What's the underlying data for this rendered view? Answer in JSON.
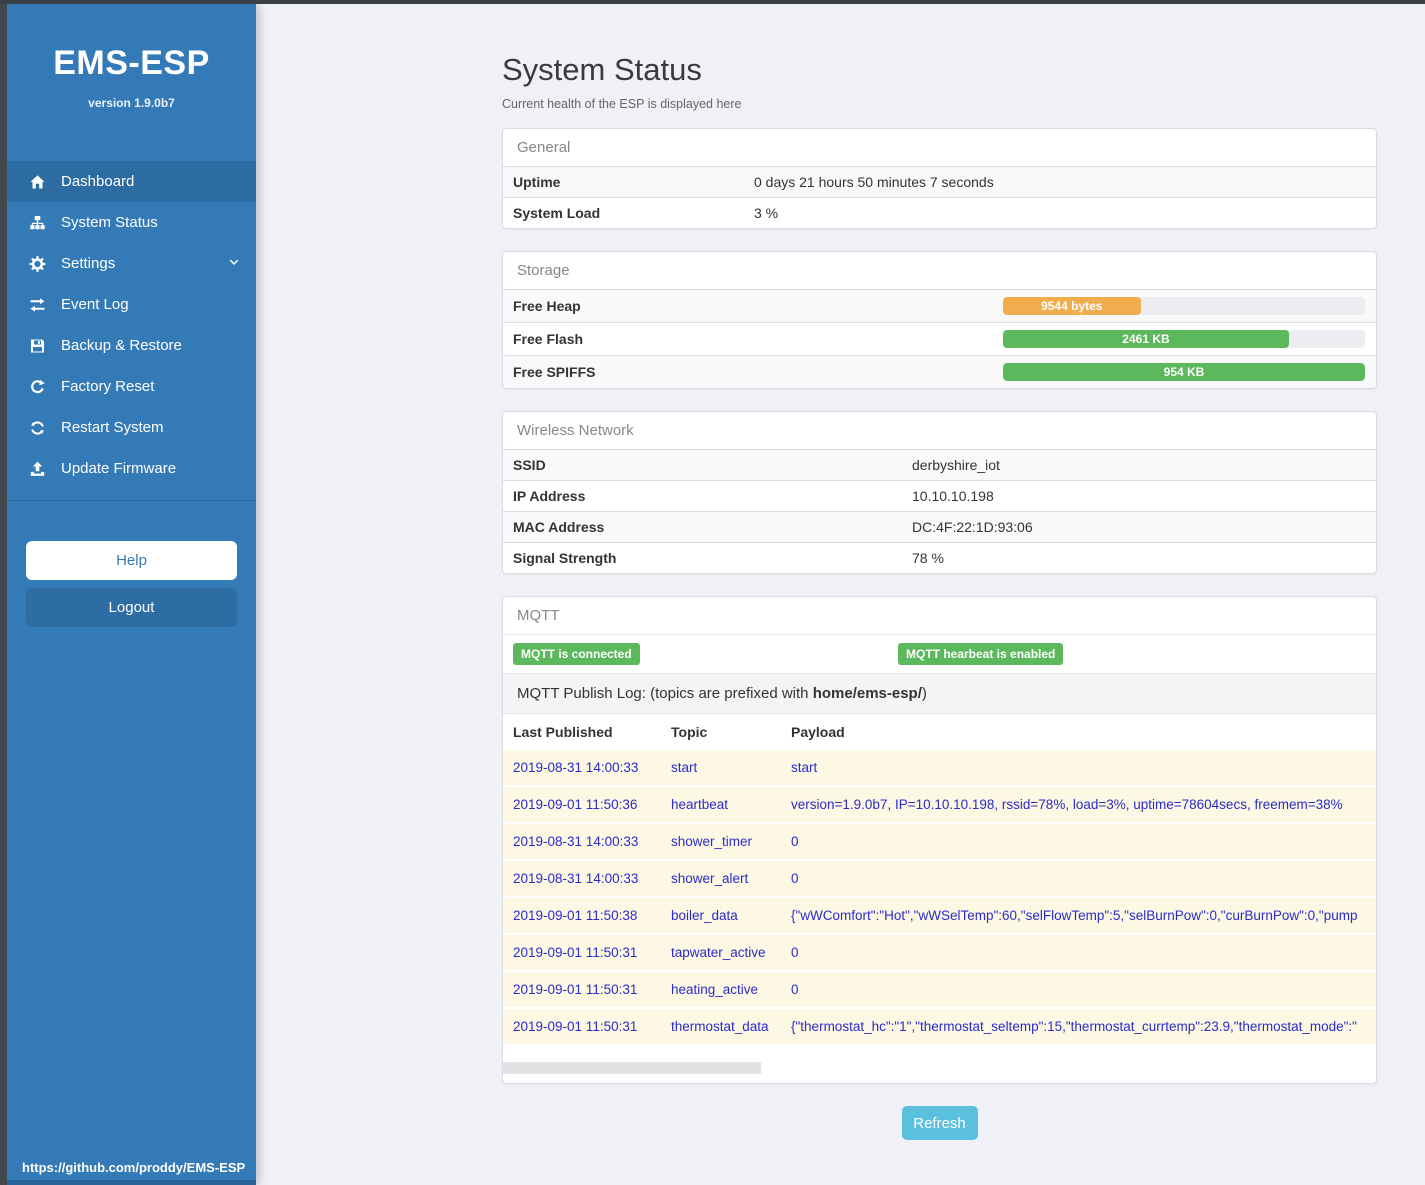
{
  "sidebar": {
    "title": "EMS-ESP",
    "version": "version 1.9.0b7",
    "menu": [
      {
        "label": "Dashboard"
      },
      {
        "label": "System Status"
      },
      {
        "label": "Settings"
      },
      {
        "label": "Event Log"
      },
      {
        "label": "Backup & Restore"
      },
      {
        "label": "Factory Reset"
      },
      {
        "label": "Restart System"
      },
      {
        "label": "Update Firmware"
      }
    ],
    "help_label": "Help",
    "logout_label": "Logout",
    "footer_link": "https://github.com/proddy/EMS-ESP"
  },
  "header": {
    "title": "System Status",
    "subtitle": "Current health of the ESP is displayed here"
  },
  "panels": {
    "general": {
      "title": "General",
      "rows": [
        {
          "label": "Uptime",
          "value": "0 days 21 hours 50 minutes 7 seconds"
        },
        {
          "label": "System Load",
          "value": "3 %"
        }
      ]
    },
    "storage": {
      "title": "Storage",
      "rows": [
        {
          "label": "Free Heap",
          "bar_label": "9544 bytes",
          "percent": 38,
          "color": "#f0ad4e"
        },
        {
          "label": "Free Flash",
          "bar_label": "2461 KB",
          "percent": 79,
          "color": "#5cb85c"
        },
        {
          "label": "Free SPIFFS",
          "bar_label": "954 KB",
          "percent": 100,
          "color": "#5cb85c"
        }
      ]
    },
    "wireless": {
      "title": "Wireless Network",
      "rows": [
        {
          "label": "SSID",
          "value": "derbyshire_iot"
        },
        {
          "label": "IP Address",
          "value": "10.10.10.198"
        },
        {
          "label": "MAC Address",
          "value": "DC:4F:22:1D:93:06"
        },
        {
          "label": "Signal Strength",
          "value": "78 %"
        }
      ]
    },
    "mqtt": {
      "title": "MQTT",
      "badges": [
        "MQTT is connected",
        "MQTT hearbeat is enabled"
      ],
      "log_heading_prefix": "MQTT Publish Log: (topics are prefixed with ",
      "log_heading_bold": "home/ems-esp/",
      "log_heading_suffix": ")",
      "columns": [
        "Last Published",
        "Topic",
        "Payload"
      ],
      "rows": [
        {
          "time": "2019-08-31 14:00:33",
          "topic": "start",
          "payload": "start"
        },
        {
          "time": "2019-09-01 11:50:36",
          "topic": "heartbeat",
          "payload": "version=1.9.0b7, IP=10.10.10.198, rssid=78%, load=3%, uptime=78604secs, freemem=38%"
        },
        {
          "time": "2019-08-31 14:00:33",
          "topic": "shower_timer",
          "payload": "0"
        },
        {
          "time": "2019-08-31 14:00:33",
          "topic": "shower_alert",
          "payload": "0"
        },
        {
          "time": "2019-09-01 11:50:38",
          "topic": "boiler_data",
          "payload": "{\"wWComfort\":\"Hot\",\"wWSelTemp\":60,\"selFlowTemp\":5,\"selBurnPow\":0,\"curBurnPow\":0,\"pump"
        },
        {
          "time": "2019-09-01 11:50:31",
          "topic": "tapwater_active",
          "payload": "0"
        },
        {
          "time": "2019-09-01 11:50:31",
          "topic": "heating_active",
          "payload": "0"
        },
        {
          "time": "2019-09-01 11:50:31",
          "topic": "thermostat_data",
          "payload": "{\"thermostat_hc\":\"1\",\"thermostat_seltemp\":15,\"thermostat_currtemp\":23.9,\"thermostat_mode\":\""
        }
      ]
    }
  },
  "refresh_label": "Refresh",
  "colors": {
    "sidebar": "#337ab7",
    "sidebar_active": "#2d6ca2",
    "badge_green": "#5cb85c",
    "bar_orange": "#f0ad4e",
    "bar_green": "#5cb85c",
    "refresh_blue": "#5bc0de",
    "log_row_bg": "#fcf8e3",
    "log_text": "#2b2bcc"
  }
}
